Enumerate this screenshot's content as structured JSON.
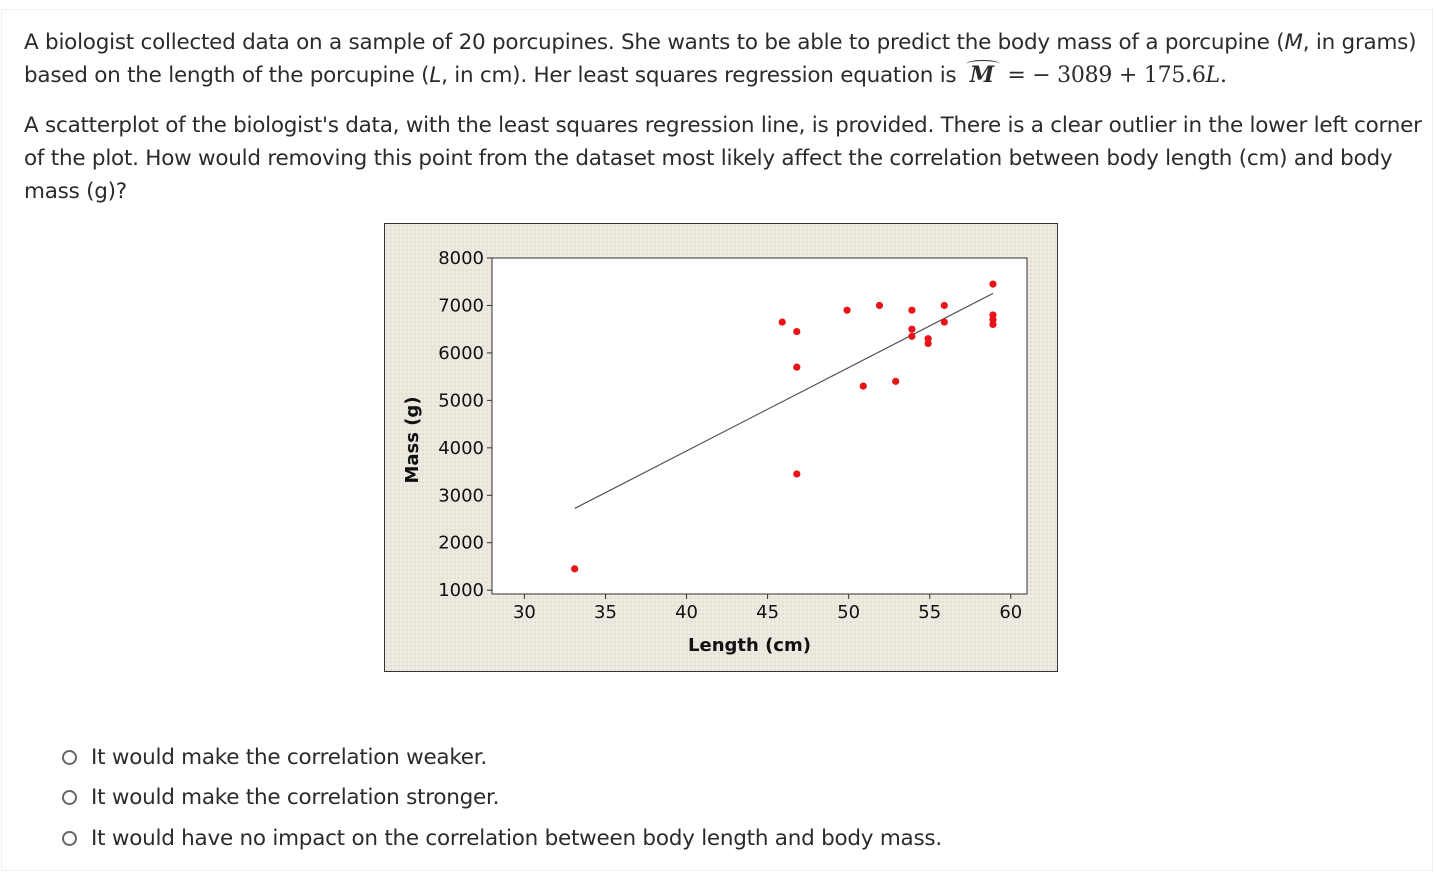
{
  "question": {
    "intro_text": "A biologist collected data on a sample of 20 porcupines. She wants to be able to predict the body mass of a porcupine (",
    "mass_var": "M",
    "mass_unit_text": ", in grams) based on the length of the porcupine (",
    "length_var": "L",
    "length_unit_text": ", in cm). Her least squares regression equation is ",
    "equation_lhs": "M",
    "equation_rhs": "= − 3089 + 175.6",
    "equation_var": "L",
    "equation_end": ".",
    "paragraph2": "A scatterplot of the biologist's data, with the least squares regression line, is provided. There is a clear outlier in the lower left corner of the plot. How would removing this point from the dataset most likely affect the correlation between body length (cm) and body mass (g)?"
  },
  "options": [
    {
      "label": "It would make the correlation weaker."
    },
    {
      "label": "It would make the correlation stronger."
    },
    {
      "label": "It would have no impact on the correlation between body length and body mass."
    }
  ],
  "chart_data": {
    "type": "scatter",
    "xlabel": "Length (cm)",
    "ylabel": "Mass (g)",
    "xlim": [
      28,
      61
    ],
    "ylim": [
      920,
      8000
    ],
    "x_ticks": [
      30,
      35,
      40,
      45,
      50,
      55,
      60
    ],
    "y_ticks": [
      1000,
      2000,
      3000,
      4000,
      5000,
      6000,
      7000,
      8000
    ],
    "grid": false,
    "point_color": "#e8141a",
    "line_color": "#555555",
    "points": [
      {
        "x": 33.1,
        "y": 1450
      },
      {
        "x": 45.9,
        "y": 6650
      },
      {
        "x": 46.8,
        "y": 6450
      },
      {
        "x": 46.8,
        "y": 5700
      },
      {
        "x": 46.8,
        "y": 3450
      },
      {
        "x": 49.9,
        "y": 6900
      },
      {
        "x": 50.9,
        "y": 5300
      },
      {
        "x": 51.9,
        "y": 7000
      },
      {
        "x": 52.9,
        "y": 5400
      },
      {
        "x": 53.9,
        "y": 6900
      },
      {
        "x": 53.9,
        "y": 6500
      },
      {
        "x": 53.9,
        "y": 6350
      },
      {
        "x": 54.9,
        "y": 6300
      },
      {
        "x": 54.9,
        "y": 6200
      },
      {
        "x": 55.9,
        "y": 7000
      },
      {
        "x": 55.9,
        "y": 6650
      },
      {
        "x": 58.9,
        "y": 7450
      },
      {
        "x": 58.9,
        "y": 6800
      },
      {
        "x": 58.9,
        "y": 6700
      },
      {
        "x": 58.9,
        "y": 6600
      }
    ],
    "regression_line": {
      "intercept": -3089,
      "slope": 175.6,
      "x_range": [
        33.1,
        58.9
      ]
    }
  }
}
